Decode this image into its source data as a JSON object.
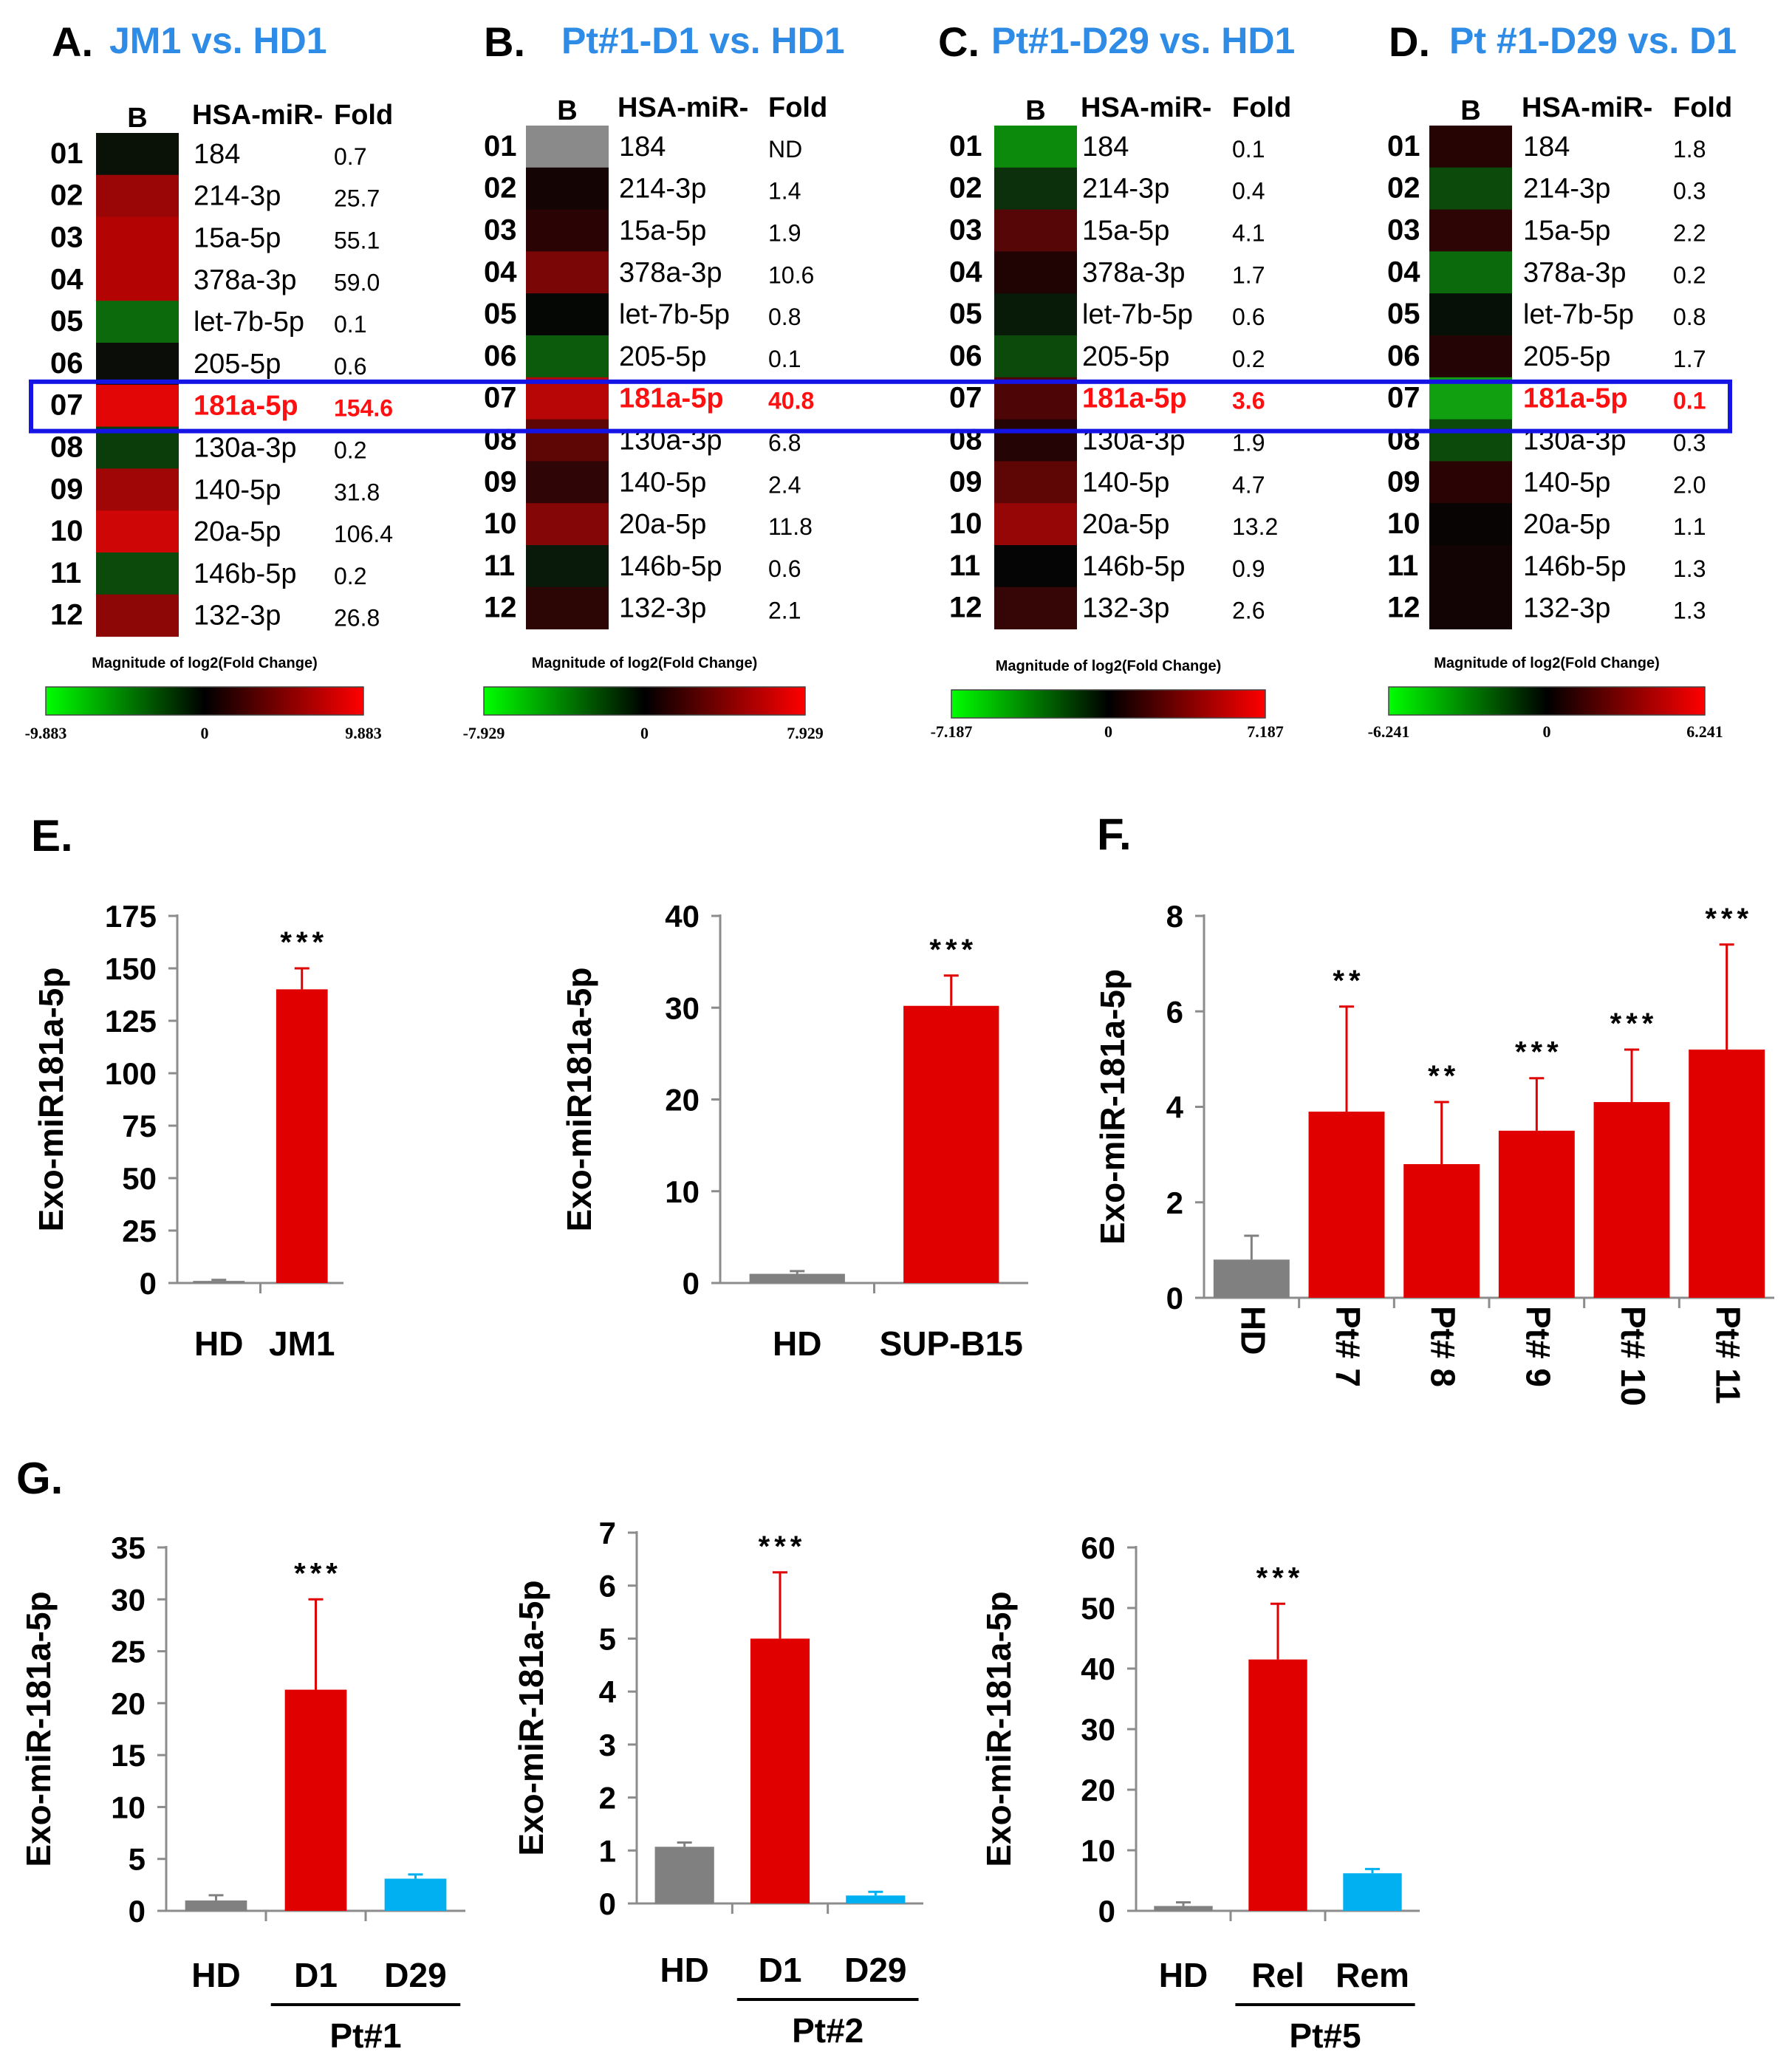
{
  "panels_heatmap": [
    {
      "letter": "A.",
      "title": "JM1 vs. HD1",
      "header_b": "B",
      "header_mir": "HSA-miR-",
      "header_fold": "Fold",
      "scale_title": "Magnitude of log2(Fold Change)",
      "scale_min": "-9.883",
      "scale_zero": "0",
      "scale_max": "9.883",
      "rows": [
        {
          "num": "01",
          "mir": "184",
          "fold": "0.7",
          "color": "#0a1208"
        },
        {
          "num": "02",
          "mir": "214-3p",
          "fold": "25.7",
          "color": "#9a0606"
        },
        {
          "num": "03",
          "mir": "15a-5p",
          "fold": "55.1",
          "color": "#b30303"
        },
        {
          "num": "04",
          "mir": "378a-3p",
          "fold": "59.0",
          "color": "#b30303"
        },
        {
          "num": "05",
          "mir": "let-7b-5p",
          "fold": "0.1",
          "color": "#0c6a0c"
        },
        {
          "num": "06",
          "mir": "205-5p",
          "fold": "0.6",
          "color": "#0a0d08"
        },
        {
          "num": "07",
          "mir": "181a-5p",
          "fold": "154.6",
          "color": "#e30606"
        },
        {
          "num": "08",
          "mir": "130a-3p",
          "fold": "0.2",
          "color": "#0b3d0b"
        },
        {
          "num": "09",
          "mir": "140-5p",
          "fold": "31.8",
          "color": "#a00606"
        },
        {
          "num": "10",
          "mir": "20a-5p",
          "fold": "106.4",
          "color": "#cf0606"
        },
        {
          "num": "11",
          "mir": "146b-5p",
          "fold": "0.2",
          "color": "#0b4a0b"
        },
        {
          "num": "12",
          "mir": "132-3p",
          "fold": "26.8",
          "color": "#8e0707"
        }
      ]
    },
    {
      "letter": "B.",
      "title": "Pt#1-D1 vs. HD1",
      "header_b": "B",
      "header_mir": "HSA-miR-",
      "header_fold": "Fold",
      "scale_title": "Magnitude of log2(Fold Change)",
      "scale_min": "-7.929",
      "scale_zero": "0",
      "scale_max": "7.929",
      "rows": [
        {
          "num": "01",
          "mir": "184",
          "fold": "ND",
          "color": "#8a8a8a"
        },
        {
          "num": "02",
          "mir": "214-3p",
          "fold": "1.4",
          "color": "#140404"
        },
        {
          "num": "03",
          "mir": "15a-5p",
          "fold": "1.9",
          "color": "#2a0404"
        },
        {
          "num": "04",
          "mir": "378a-3p",
          "fold": "10.6",
          "color": "#7a0606"
        },
        {
          "num": "05",
          "mir": "let-7b-5p",
          "fold": "0.8",
          "color": "#050705"
        },
        {
          "num": "06",
          "mir": "205-5p",
          "fold": "0.1",
          "color": "#0c5a0c"
        },
        {
          "num": "07",
          "mir": "181a-5p",
          "fold": "40.8",
          "color": "#b80606"
        },
        {
          "num": "08",
          "mir": "130a-3p",
          "fold": "6.8",
          "color": "#5e0606"
        },
        {
          "num": "09",
          "mir": "140-5p",
          "fold": "2.4",
          "color": "#300505"
        },
        {
          "num": "10",
          "mir": "20a-5p",
          "fold": "11.8",
          "color": "#850606"
        },
        {
          "num": "11",
          "mir": "146b-5p",
          "fold": "0.6",
          "color": "#0a1a0a"
        },
        {
          "num": "12",
          "mir": "132-3p",
          "fold": "2.1",
          "color": "#2c0505"
        }
      ]
    },
    {
      "letter": "C.",
      "title": "Pt#1-D29 vs. HD1",
      "header_b": "B",
      "header_mir": "HSA-miR-",
      "header_fold": "Fold",
      "scale_title": "Magnitude of log2(Fold Change)",
      "scale_min": "-7.187",
      "scale_zero": "0",
      "scale_max": "7.187",
      "rows": [
        {
          "num": "01",
          "mir": "184",
          "fold": "0.1",
          "color": "#0b8a0b"
        },
        {
          "num": "02",
          "mir": "214-3p",
          "fold": "0.4",
          "color": "#0b300b"
        },
        {
          "num": "03",
          "mir": "15a-5p",
          "fold": "4.1",
          "color": "#560606"
        },
        {
          "num": "04",
          "mir": "378a-3p",
          "fold": "1.7",
          "color": "#200404"
        },
        {
          "num": "05",
          "mir": "let-7b-5p",
          "fold": "0.6",
          "color": "#081a08"
        },
        {
          "num": "06",
          "mir": "205-5p",
          "fold": "0.2",
          "color": "#0b4a0b"
        },
        {
          "num": "07",
          "mir": "181a-5p",
          "fold": "3.6",
          "color": "#4e0505"
        },
        {
          "num": "08",
          "mir": "130a-3p",
          "fold": "1.9",
          "color": "#240404"
        },
        {
          "num": "09",
          "mir": "140-5p",
          "fold": "4.7",
          "color": "#5e0606"
        },
        {
          "num": "10",
          "mir": "20a-5p",
          "fold": "13.2",
          "color": "#960606"
        },
        {
          "num": "11",
          "mir": "146b-5p",
          "fold": "0.9",
          "color": "#050505"
        },
        {
          "num": "12",
          "mir": "132-3p",
          "fold": "2.6",
          "color": "#360505"
        }
      ]
    },
    {
      "letter": "D.",
      "title": "Pt #1-D29 vs. D1",
      "header_b": "B",
      "header_mir": "HSA-miR-",
      "header_fold": "Fold",
      "scale_title": "Magnitude of log2(Fold Change)",
      "scale_min": "-6.241",
      "scale_zero": "0",
      "scale_max": "6.241",
      "rows": [
        {
          "num": "01",
          "mir": "184",
          "fold": "1.8",
          "color": "#260404"
        },
        {
          "num": "02",
          "mir": "214-3p",
          "fold": "0.3",
          "color": "#0b4a0b"
        },
        {
          "num": "03",
          "mir": "15a-5p",
          "fold": "2.2",
          "color": "#2e0505"
        },
        {
          "num": "04",
          "mir": "378a-3p",
          "fold": "0.2",
          "color": "#0b6a0b"
        },
        {
          "num": "05",
          "mir": "let-7b-5p",
          "fold": "0.8",
          "color": "#061006"
        },
        {
          "num": "06",
          "mir": "205-5p",
          "fold": "1.7",
          "color": "#240404"
        },
        {
          "num": "07",
          "mir": "181a-5p",
          "fold": "0.1",
          "color": "#10a010"
        },
        {
          "num": "08",
          "mir": "130a-3p",
          "fold": "0.3",
          "color": "#0b4a0b"
        },
        {
          "num": "09",
          "mir": "140-5p",
          "fold": "2.0",
          "color": "#2a0404"
        },
        {
          "num": "10",
          "mir": "20a-5p",
          "fold": "1.1",
          "color": "#080404"
        },
        {
          "num": "11",
          "mir": "146b-5p",
          "fold": "1.3",
          "color": "#120404"
        },
        {
          "num": "12",
          "mir": "132-3p",
          "fold": "1.3",
          "color": "#120404"
        }
      ]
    }
  ],
  "colors": {
    "hd_gray": "#808080",
    "red": "#e00000",
    "blue": "#00b0f0",
    "highlight_box": "#1414e6"
  },
  "chart_data": [
    {
      "id": "E1",
      "panel_label": "E.",
      "type": "bar",
      "ylabel": "Exo-miR181a-5p",
      "categories": [
        "HD",
        "JM1"
      ],
      "values": [
        1,
        140
      ],
      "errors": [
        0.5,
        10
      ],
      "colors": [
        "#808080",
        "#e00000"
      ],
      "significance": [
        "",
        "***"
      ],
      "ylim": [
        0,
        175
      ],
      "yticks": [
        "0",
        "25",
        "50",
        "75",
        "100",
        "125",
        "150",
        "175"
      ],
      "group_label": ""
    },
    {
      "id": "E2",
      "panel_label": "",
      "type": "bar",
      "ylabel": "Exo-miR181a-5p",
      "categories": [
        "HD",
        "SUP-B15"
      ],
      "values": [
        1,
        30.2
      ],
      "errors": [
        0.3,
        3.3
      ],
      "colors": [
        "#808080",
        "#e00000"
      ],
      "significance": [
        "",
        "***"
      ],
      "ylim": [
        0,
        40
      ],
      "yticks": [
        "0",
        "10",
        "20",
        "30",
        "40"
      ],
      "group_label": ""
    },
    {
      "id": "F",
      "panel_label": "F.",
      "type": "bar",
      "ylabel": "Exo-miR-181a-5p",
      "categories": [
        "HD",
        "Pt# 7",
        "Pt# 8",
        "Pt# 9",
        "Pt# 10",
        "Pt# 11"
      ],
      "values": [
        0.8,
        3.9,
        2.8,
        3.5,
        4.1,
        5.2
      ],
      "errors": [
        0.5,
        2.2,
        1.3,
        1.1,
        1.1,
        2.2
      ],
      "colors": [
        "#808080",
        "#e00000",
        "#e00000",
        "#e00000",
        "#e00000",
        "#e00000"
      ],
      "significance": [
        "",
        "**",
        "**",
        "***",
        "***",
        "***"
      ],
      "ylim": [
        0,
        8
      ],
      "yticks": [
        "0",
        "2",
        "4",
        "6",
        "8"
      ],
      "group_label": ""
    },
    {
      "id": "G1",
      "panel_label": "G.",
      "type": "bar",
      "ylabel": "Exo-miR-181a-5p",
      "categories": [
        "HD",
        "D1",
        "D29"
      ],
      "values": [
        1,
        21.3,
        3.1
      ],
      "errors": [
        0.5,
        8.7,
        0.4
      ],
      "colors": [
        "#808080",
        "#e00000",
        "#00b0f0"
      ],
      "significance": [
        "",
        "***",
        ""
      ],
      "ylim": [
        0,
        35
      ],
      "yticks": [
        "0",
        "5",
        "10",
        "15",
        "20",
        "25",
        "30",
        "35"
      ],
      "group_label": "Pt#1"
    },
    {
      "id": "G2",
      "panel_label": "",
      "type": "bar",
      "ylabel": "Exo-miR-181a-5p",
      "categories": [
        "HD",
        "D1",
        "D29"
      ],
      "values": [
        1.07,
        5.0,
        0.15
      ],
      "errors": [
        0.08,
        1.25,
        0.07
      ],
      "colors": [
        "#808080",
        "#e00000",
        "#00b0f0"
      ],
      "significance": [
        "",
        "***",
        ""
      ],
      "ylim": [
        0,
        7
      ],
      "yticks": [
        "0",
        "1",
        "2",
        "3",
        "4",
        "5",
        "6",
        "7"
      ],
      "group_label": "Pt#2"
    },
    {
      "id": "G3",
      "panel_label": "",
      "type": "bar",
      "ylabel": "Exo-miR-181a-5p",
      "categories": [
        "HD",
        "Rel",
        "Rem"
      ],
      "values": [
        0.8,
        41.5,
        6.2
      ],
      "errors": [
        0.6,
        9.2,
        0.7
      ],
      "colors": [
        "#808080",
        "#e00000",
        "#00b0f0"
      ],
      "significance": [
        "",
        "***",
        ""
      ],
      "ylim": [
        0,
        60
      ],
      "yticks": [
        "0",
        "10",
        "20",
        "30",
        "40",
        "50",
        "60"
      ],
      "group_label": "Pt#5"
    }
  ]
}
